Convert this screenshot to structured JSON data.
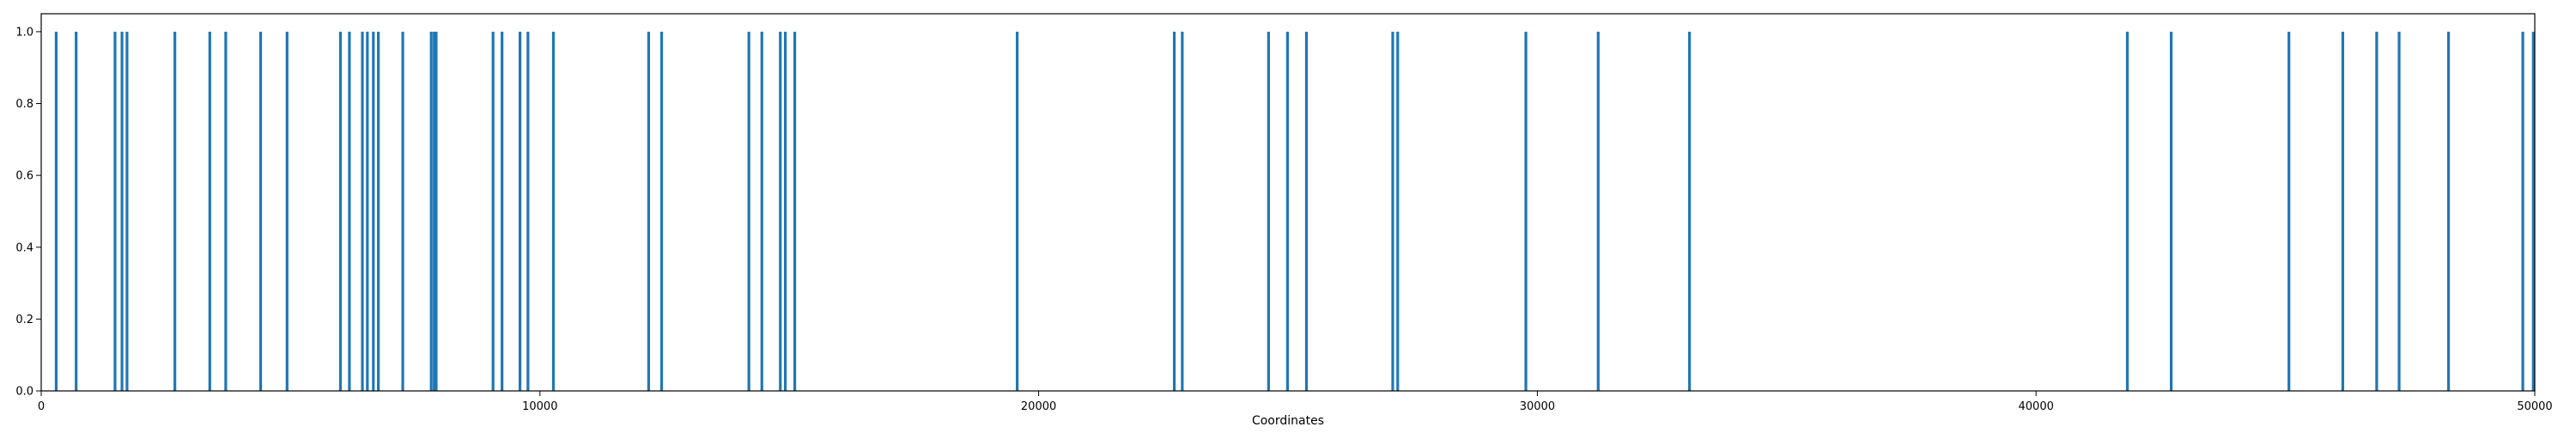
{
  "chart_data": {
    "type": "bar",
    "title": "",
    "xlabel": "Coordinates",
    "ylabel": "",
    "xlim": [
      0,
      50000
    ],
    "ylim": [
      0,
      1.05
    ],
    "grid": false,
    "color": "#1f77b4",
    "x_ticks": [
      0,
      10000,
      20000,
      30000,
      40000,
      50000
    ],
    "x_tick_labels": [
      "0",
      "10000",
      "20000",
      "30000",
      "40000",
      "50000"
    ],
    "y_ticks": [
      0.0,
      0.2,
      0.4,
      0.6,
      0.8,
      1.0
    ],
    "y_tick_labels": [
      "0.0",
      "0.2",
      "0.4",
      "0.6",
      "0.8",
      "1.0"
    ],
    "x": [
      300,
      700,
      1480,
      1620,
      1720,
      2680,
      3380,
      3700,
      4400,
      4930,
      6000,
      6180,
      6440,
      6540,
      6660,
      6760,
      7250,
      7820,
      7880,
      7920,
      9060,
      9240,
      9600,
      9760,
      10270,
      12180,
      12440,
      14190,
      14450,
      14820,
      14920,
      15110,
      19570,
      22720,
      22880,
      24610,
      24990,
      25370,
      27100,
      27200,
      29770,
      31220,
      33050,
      41830,
      42710,
      45070,
      46150,
      46830,
      47280,
      48270,
      49760,
      49970
    ],
    "values": [
      1,
      1,
      1,
      1,
      1,
      1,
      1,
      1,
      1,
      1,
      1,
      1,
      1,
      1,
      1,
      1,
      1,
      1,
      1,
      1,
      1,
      1,
      1,
      1,
      1,
      1,
      1,
      1,
      1,
      1,
      1,
      1,
      1,
      1,
      1,
      1,
      1,
      1,
      1,
      1,
      1,
      1,
      1,
      1,
      1,
      1,
      1,
      1,
      1,
      1,
      1,
      1
    ]
  }
}
